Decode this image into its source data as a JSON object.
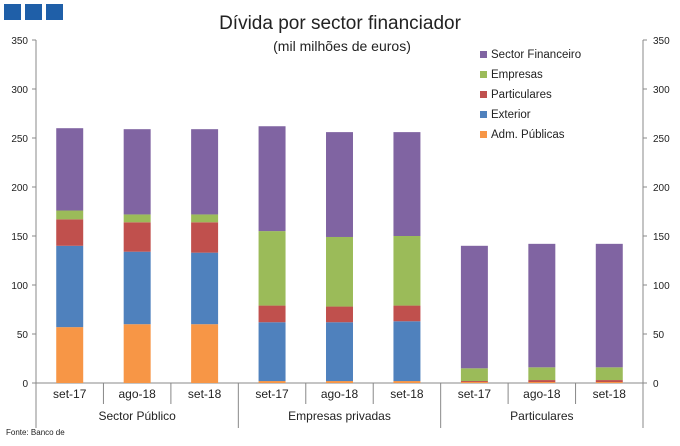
{
  "header": {
    "logo_icon": "institution-logo-squares"
  },
  "chart_data": {
    "type": "bar",
    "stacked": true,
    "title": "Dívida por sector financiador",
    "subtitle": "(mil milhões de euros)",
    "ylim": [
      0,
      350
    ],
    "yticks": [
      "0",
      "50",
      "100",
      "150",
      "200",
      "250",
      "300",
      "350"
    ],
    "y_axes": [
      "left",
      "right"
    ],
    "grid": false,
    "legend_position": "top-right",
    "groups": [
      {
        "label": "Sector Público",
        "categories": [
          "set-17",
          "ago-18",
          "set-18"
        ]
      },
      {
        "label": "Empresas privadas",
        "categories": [
          "set-17",
          "ago-18",
          "set-18"
        ]
      },
      {
        "label": "Particulares",
        "categories": [
          "set-17",
          "ago-18",
          "set-18"
        ]
      }
    ],
    "series": [
      {
        "name": "Adm. Públicas",
        "color": "#f79646",
        "values": [
          57,
          60,
          60,
          2,
          2,
          2,
          1,
          1,
          1
        ]
      },
      {
        "name": "Exterior",
        "color": "#4f81bd",
        "values": [
          83,
          74,
          73,
          60,
          60,
          61,
          0,
          0,
          0
        ]
      },
      {
        "name": "Particulares",
        "color": "#c0504d",
        "values": [
          27,
          30,
          31,
          17,
          16,
          16,
          1,
          2,
          2
        ]
      },
      {
        "name": "Empresas",
        "color": "#9bbb59",
        "values": [
          9,
          8,
          8,
          76,
          71,
          71,
          13,
          13,
          13
        ]
      },
      {
        "name": "Sector Financeiro",
        "color": "#8064a2",
        "values": [
          84,
          87,
          87,
          107,
          107,
          106,
          125,
          126,
          126
        ]
      }
    ],
    "legend_order": [
      "Sector Financeiro",
      "Empresas",
      "Particulares",
      "Exterior",
      "Adm. Públicas"
    ]
  },
  "footer": {
    "source": "Fonte: Banco de"
  }
}
